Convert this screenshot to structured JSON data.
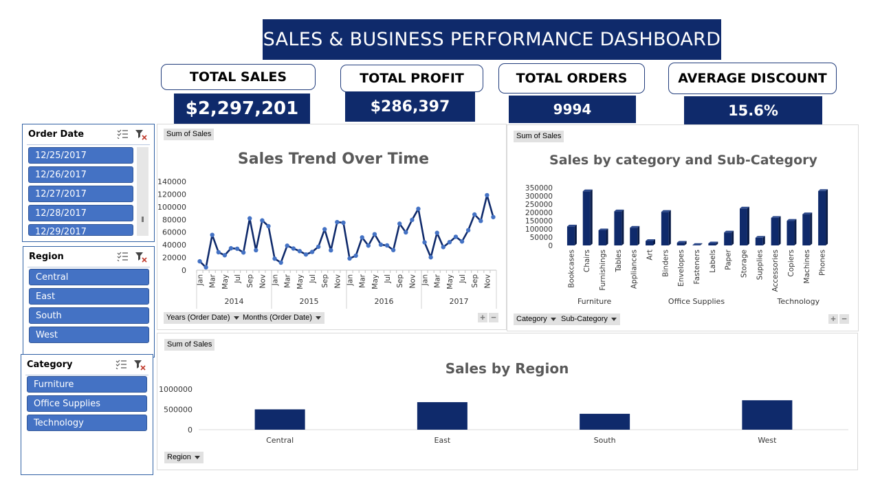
{
  "header": {
    "title": "SALES & BUSINESS PERFORMANCE DASHBOARD"
  },
  "kpis": [
    {
      "label": "TOTAL SALES",
      "value": "$2,297,201"
    },
    {
      "label": "TOTAL PROFIT",
      "value": "$286,397"
    },
    {
      "label": "TOTAL ORDERS",
      "value": "9994"
    },
    {
      "label": "AVERAGE DISCOUNT",
      "value": "15.6%"
    }
  ],
  "slicers": {
    "order_date": {
      "title": "Order Date",
      "items": [
        "12/25/2017",
        "12/26/2017",
        "12/27/2017",
        "12/28/2017",
        "12/29/2017"
      ]
    },
    "region": {
      "title": "Region",
      "items": [
        "Central",
        "East",
        "South",
        "West"
      ]
    },
    "category": {
      "title": "Category",
      "items": [
        "Furniture",
        "Office Supplies",
        "Technology"
      ]
    }
  },
  "icons": {
    "multi_select": "multi-select-icon",
    "clear_filter": "clear-filter-icon"
  },
  "colors": {
    "navy": "#0f2a6b",
    "slicer_item": "#4472c4",
    "line_series": "#0f2a6b",
    "line_marker": "#4472c4"
  },
  "trend": {
    "field_label": "Sum of Sales",
    "title": "Sales Trend Over Time",
    "buttons": [
      "Years (Order Date)",
      "Months (Order Date)"
    ],
    "plus": "+",
    "minus": "−"
  },
  "category_panel": {
    "field_label": "Sum of Sales",
    "title": "Sales by category and Sub-Category",
    "buttons": [
      "Category",
      "Sub-Category"
    ],
    "plus": "+",
    "minus": "−"
  },
  "region_panel": {
    "field_label": "Sum of Sales",
    "title": "Sales by Region",
    "buttons": [
      "Region"
    ]
  },
  "chart_data": [
    {
      "type": "line",
      "title": "Sales Trend Over Time",
      "y_ticks": [
        "140000",
        "120000",
        "100000",
        "80000",
        "60000",
        "40000",
        "20000",
        "0"
      ],
      "ylim": [
        0,
        140000
      ],
      "month_labels": [
        "Jan",
        "Mar",
        "May",
        "Jul",
        "Sep",
        "Nov"
      ],
      "years": [
        "2014",
        "2015",
        "2016",
        "2017"
      ],
      "values": [
        14000,
        4500,
        55700,
        28300,
        23600,
        34600,
        33900,
        27900,
        81800,
        31500,
        78600,
        69500,
        18200,
        11900,
        38700,
        34200,
        30100,
        24800,
        28800,
        37000,
        64600,
        31400,
        75900,
        74900,
        18500,
        22900,
        51700,
        38800,
        56800,
        40300,
        39100,
        31700,
        73400,
        59700,
        79400,
        96900,
        43900,
        20300,
        58900,
        36500,
        44300,
        52700,
        45300,
        63100,
        87900,
        77800,
        118400,
        83800
      ]
    },
    {
      "type": "bar",
      "title": "Sales by category and Sub-Category",
      "y_ticks": [
        "350000",
        "300000",
        "250000",
        "200000",
        "150000",
        "100000",
        "50000",
        "0"
      ],
      "ylim": [
        0,
        350000
      ],
      "groups": [
        {
          "name": "Furniture",
          "categories": [
            "Bookcases",
            "Chairs",
            "Furnishings",
            "Tables"
          ],
          "values": [
            114880,
            328449,
            91705,
            206966
          ]
        },
        {
          "name": "Office Supplies",
          "categories": [
            "Appliances",
            "Art",
            "Binders",
            "Envelopes",
            "Fasteners",
            "Labels",
            "Paper",
            "Storage",
            "Supplies"
          ],
          "values": [
            107532,
            27119,
            203413,
            16476,
            3024,
            12486,
            78479,
            223844,
            46674
          ]
        },
        {
          "name": "Technology",
          "categories": [
            "Accessories",
            "Copiers",
            "Machines",
            "Phones"
          ],
          "values": [
            167380,
            149528,
            189239,
            330007
          ]
        }
      ]
    },
    {
      "type": "bar",
      "title": "Sales by Region",
      "y_ticks": [
        "1000000",
        "500000",
        "0"
      ],
      "ylim": [
        0,
        1000000
      ],
      "categories": [
        "Central",
        "East",
        "South",
        "West"
      ],
      "values": [
        501240,
        678781,
        391722,
        725458
      ]
    }
  ]
}
